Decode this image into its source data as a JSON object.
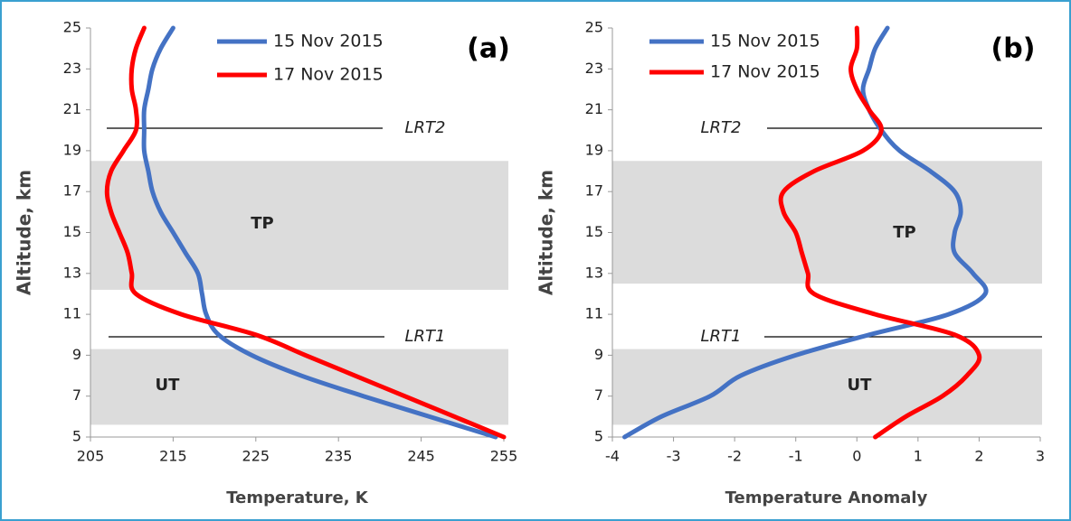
{
  "chart_data": [
    {
      "type": "line",
      "title": "(a)",
      "xlabel": "Temperature, K",
      "ylabel": "Altitude, km",
      "altitude": [
        5,
        6,
        7,
        8,
        9,
        10,
        11,
        12,
        13,
        14,
        15,
        16,
        17,
        18,
        19,
        20,
        21,
        22,
        23,
        24,
        25
      ],
      "series": [
        {
          "name": "15 Nov 2015",
          "color": "#4472c4",
          "values": [
            254,
            246,
            238,
            230.5,
            224.5,
            220.5,
            219,
            218.5,
            218,
            216.5,
            215,
            213.5,
            212.5,
            212,
            211.5,
            211.5,
            211.5,
            212,
            212.5,
            213.5,
            215
          ]
        },
        {
          "name": "17 Nov 2015",
          "color": "#ff0000",
          "values": [
            255,
            249,
            243,
            237,
            231,
            225,
            216,
            210.5,
            210,
            209.5,
            208.5,
            207.5,
            207,
            207.5,
            209,
            210.5,
            210.5,
            210,
            210,
            210.5,
            211.5
          ]
        }
      ],
      "xlim": [
        205,
        255
      ],
      "xticks": [
        205,
        215,
        225,
        235,
        245,
        255
      ],
      "ylim": [
        5,
        25
      ],
      "yticks": [
        5,
        7,
        9,
        11,
        13,
        15,
        17,
        19,
        21,
        23,
        25
      ],
      "bands": [
        {
          "label": "TP",
          "from": 12.2,
          "to": 18.5
        },
        {
          "label": "UT",
          "from": 5.6,
          "to": 9.3
        }
      ],
      "reference_lines": [
        {
          "label": "LRT2",
          "y": 20.1
        },
        {
          "label": "LRT1",
          "y": 9.9
        }
      ]
    },
    {
      "type": "line",
      "title": "(b)",
      "xlabel": "Temperature  Anomaly",
      "ylabel": "Altitude, km",
      "altitude": [
        5,
        6,
        7,
        8,
        9,
        10,
        11,
        12,
        13,
        14,
        15,
        16,
        17,
        18,
        19,
        20,
        21,
        22,
        23,
        24,
        25
      ],
      "series": [
        {
          "name": "15 Nov 2015",
          "color": "#4472c4",
          "values": [
            -3.8,
            -3.2,
            -2.4,
            -1.9,
            -1.0,
            0.2,
            1.5,
            2.1,
            1.9,
            1.6,
            1.6,
            1.7,
            1.6,
            1.2,
            0.7,
            0.4,
            0.2,
            0.1,
            0.2,
            0.3,
            0.5
          ]
        },
        {
          "name": "17 Nov 2015",
          "color": "#ff0000",
          "values": [
            0.3,
            0.8,
            1.4,
            1.8,
            2.0,
            1.6,
            0.3,
            -0.7,
            -0.8,
            -0.9,
            -1.0,
            -1.2,
            -1.2,
            -0.7,
            0.1,
            0.4,
            0.2,
            0.0,
            -0.1,
            0.0,
            0.0
          ]
        }
      ],
      "xlim": [
        -4,
        3
      ],
      "xticks": [
        -4,
        -3,
        -2,
        -1,
        0,
        1,
        2,
        3
      ],
      "ylim": [
        5,
        25
      ],
      "yticks": [
        5,
        7,
        9,
        11,
        13,
        15,
        17,
        19,
        21,
        23,
        25
      ],
      "bands": [
        {
          "label": "TP",
          "from": 12.5,
          "to": 18.5
        },
        {
          "label": "UT",
          "from": 5.6,
          "to": 9.3
        }
      ],
      "reference_lines": [
        {
          "label": "LRT2",
          "y": 20.1
        },
        {
          "label": "LRT1",
          "y": 9.9
        }
      ]
    }
  ]
}
